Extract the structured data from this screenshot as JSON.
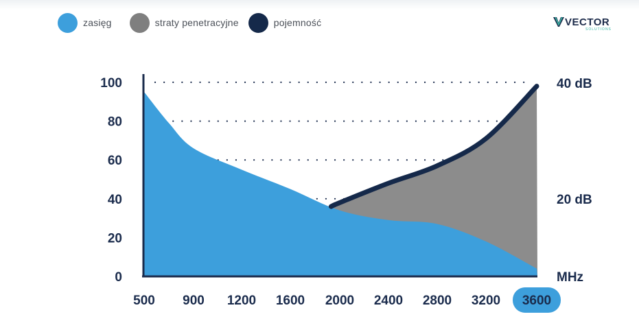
{
  "legend": [
    {
      "label": "zasięg",
      "color": "#3d9fdc"
    },
    {
      "label": "straty penetracyjne",
      "color": "#7f7f7f"
    },
    {
      "label": "pojemność",
      "color": "#15294a"
    }
  ],
  "logo": {
    "word": "VECTOR",
    "sub": "SOLUTIONS"
  },
  "chart_data": {
    "type": "area",
    "x": [
      500,
      900,
      1200,
      1600,
      2000,
      2400,
      2800,
      3200,
      3600
    ],
    "xlabel": "MHz",
    "highlighted_x_label": "3600",
    "y_left": {
      "ticks": [
        "100",
        "80",
        "60",
        "40",
        "20",
        "0"
      ],
      "lim": [
        0,
        100
      ]
    },
    "y_right": {
      "ticks": [
        "40 dB",
        "20 dB"
      ]
    },
    "grid": "dotted horizontal",
    "series": [
      {
        "name": "zasięg",
        "color": "#3d9fdc",
        "x": [
          500,
          700,
          900,
          1200,
          1600,
          2000,
          2400,
          2800,
          3200,
          3600
        ],
        "y": [
          95,
          79,
          66,
          55,
          45,
          34,
          29,
          27,
          18,
          4
        ]
      },
      {
        "name": "pojemność",
        "color": "#15294a",
        "x": [
          1930,
          2000,
          2400,
          2800,
          3200,
          3600
        ],
        "y": [
          36,
          38,
          48,
          57,
          71,
          98
        ]
      },
      {
        "name": "straty penetracyjne",
        "color": "#7f7f7f",
        "note_x": [
          2000,
          3600
        ],
        "upper_bound": "pojemność",
        "lower_bound": "zasięg"
      }
    ]
  }
}
